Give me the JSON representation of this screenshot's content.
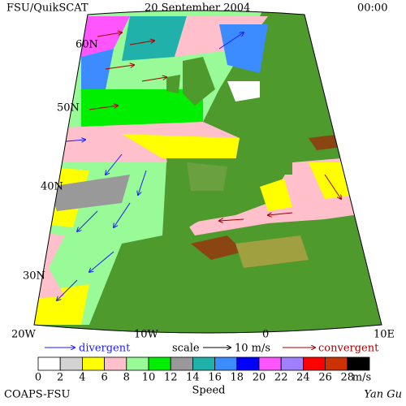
{
  "header": {
    "title": "FSU/QuikSCAT",
    "date": "20 September 2004",
    "time": "00:00"
  },
  "map": {
    "lat_labels": [
      "60N",
      "50N",
      "40N",
      "30N"
    ],
    "lon_labels": [
      "20W",
      "10W",
      "0",
      "10E"
    ]
  },
  "legend": {
    "divergent": "divergent",
    "scale": "scale",
    "scale_value": "10 m/s",
    "convergent": "convergent"
  },
  "colorbar": {
    "ticks": [
      0,
      2,
      4,
      6,
      8,
      10,
      12,
      14,
      16,
      18,
      20,
      22,
      24,
      26,
      28
    ],
    "unit": "m/s",
    "label": "Speed",
    "colors": [
      "#ffffff",
      "#d3d3d3",
      "#ffff00",
      "#ffc0cb",
      "#98fb98",
      "#00ee00",
      "#999999",
      "#20b2aa",
      "#3c8cff",
      "#0000ff",
      "#ff55ff",
      "#a080ff",
      "#ff0000",
      "#cc3300",
      "#000000"
    ]
  },
  "footer": {
    "credit": "COAPS-FSU",
    "author": "Yan Gu"
  }
}
